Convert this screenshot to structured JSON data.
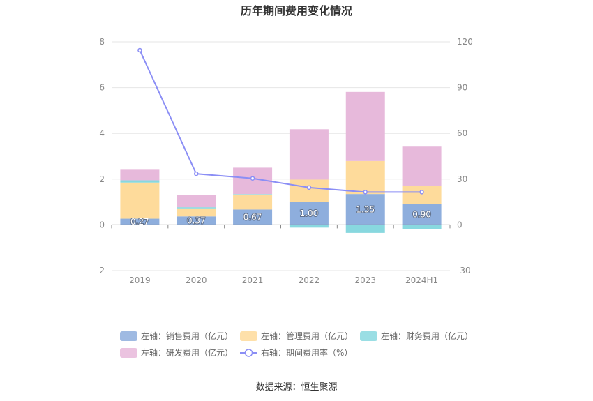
{
  "chart_data": {
    "type": "bar",
    "title": "历年期间费用变化情况",
    "categories": [
      "2019",
      "2020",
      "2021",
      "2022",
      "2023",
      "2024H1"
    ],
    "left_axis": {
      "ylim": [
        -2,
        8
      ],
      "ticks": [
        "-2",
        "0",
        "2",
        "4",
        "6",
        "8"
      ]
    },
    "right_axis": {
      "ylim": [
        -30,
        120
      ],
      "ticks": [
        "-30",
        "0",
        "30",
        "60",
        "90",
        "120"
      ]
    },
    "series": [
      {
        "name": "左轴：销售费用（亿元）",
        "axis": "left",
        "color": "#8eaedd",
        "values": [
          0.27,
          0.37,
          0.67,
          1.0,
          1.35,
          0.9
        ],
        "labels": [
          "0.27",
          "0.37",
          "0.67",
          "1.00",
          "1.35",
          "0.90"
        ]
      },
      {
        "name": "左轴：管理费用（亿元）",
        "axis": "left",
        "color": "#fedb9b",
        "values": [
          1.58,
          0.35,
          0.66,
          0.98,
          1.44,
          0.82
        ]
      },
      {
        "name": "左轴：财务费用（亿元）",
        "axis": "left",
        "color": "#88d8df",
        "values": [
          0.1,
          0.05,
          0.02,
          -0.12,
          -0.35,
          -0.2
        ]
      },
      {
        "name": "左轴：研发费用（亿元）",
        "axis": "left",
        "color": "#e7b9db",
        "values": [
          0.46,
          0.55,
          1.15,
          2.2,
          3.02,
          1.7
        ]
      },
      {
        "name": "右轴：期间费用率（%）",
        "axis": "right",
        "type": "line",
        "color": "#8b8ef5",
        "values": [
          114.5,
          33.5,
          30.5,
          24.5,
          21.5,
          21.5
        ]
      }
    ],
    "grid": true,
    "legend_position": "bottom"
  },
  "source": "数据来源：恒生聚源"
}
